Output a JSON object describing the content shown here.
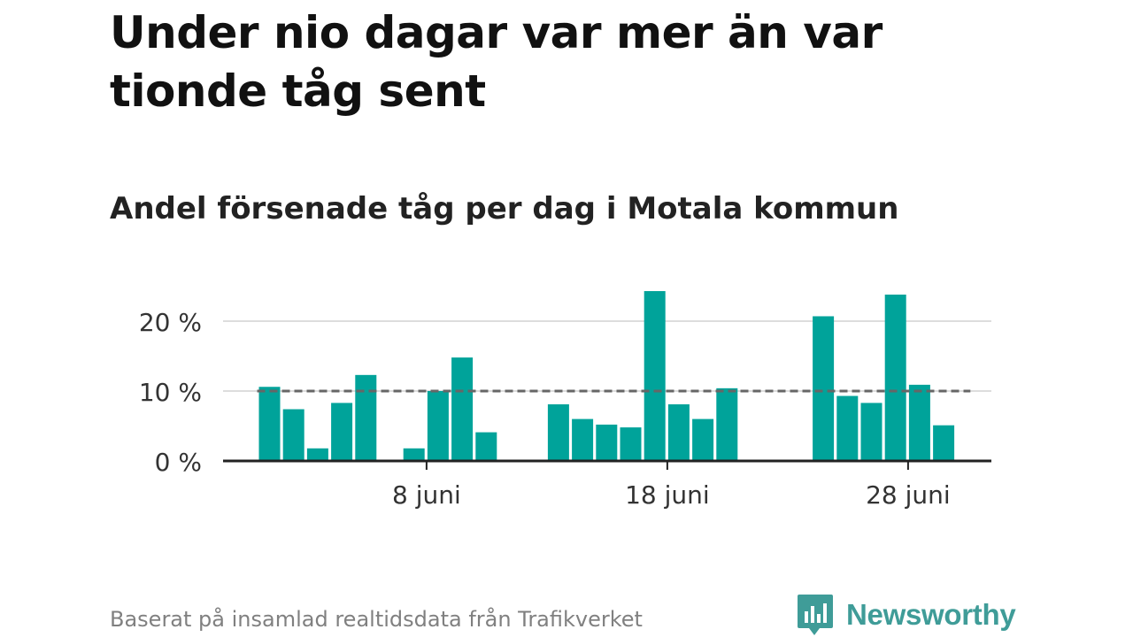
{
  "title": "Under nio dagar var mer än var tionde tåg sent",
  "subtitle": "Andel försenade tåg per dag i Motala kommun",
  "source": "Baserat på insamlad realtidsdata från Trafikverket",
  "logo_text": "Newsworthy",
  "colors": {
    "bar": "#00a39a",
    "reference": "#666666",
    "grid": "#dddddd",
    "axis": "#222222",
    "logo": "#3f9c98"
  },
  "chart_data": {
    "type": "bar",
    "x_unit": "day of June",
    "x_range": [
      0.5,
      31.5
    ],
    "ylim": [
      0,
      26
    ],
    "y_ticks": [
      0,
      10,
      20
    ],
    "y_tick_labels": [
      "0 %",
      "10 %",
      "20 %"
    ],
    "x_ticks": [
      8,
      18,
      28
    ],
    "x_tick_labels": [
      "8 juni",
      "18 juni",
      "28 juni"
    ],
    "reference_line": {
      "value": 10,
      "style": "dashed",
      "from_day": 1,
      "to_day": 30
    },
    "grid": "horizontal",
    "days": [
      1,
      2,
      3,
      4,
      5,
      7,
      8,
      9,
      10,
      13,
      14,
      15,
      16,
      17,
      18,
      19,
      20,
      24,
      25,
      26,
      27,
      28,
      29
    ],
    "values": [
      10.6,
      7.4,
      1.8,
      8.3,
      12.3,
      1.8,
      10.0,
      14.8,
      4.1,
      8.1,
      6.0,
      5.2,
      4.8,
      24.3,
      8.1,
      6.0,
      10.4,
      20.7,
      9.3,
      8.3,
      23.8,
      10.9,
      5.1
    ]
  }
}
